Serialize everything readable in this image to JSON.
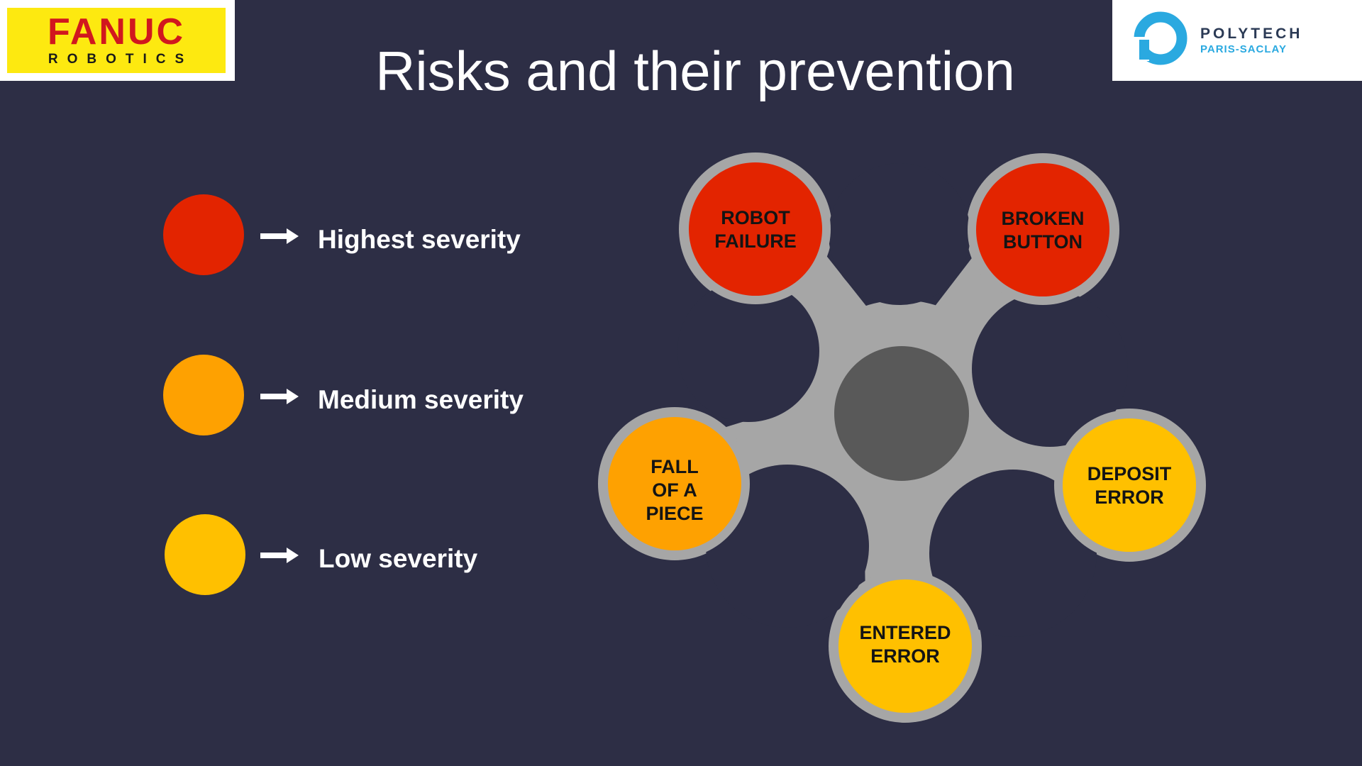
{
  "header": {
    "title": "Risks and their prevention",
    "left_logo": {
      "word": "FANUC",
      "sub": "ROBOTICS"
    },
    "right_logo": {
      "word": "POLYTECH",
      "sub": "PARIS-SACLAY"
    }
  },
  "legend": [
    {
      "label": "Highest severity",
      "color": "#e32400"
    },
    {
      "label": "Medium severity",
      "color": "#fea101"
    },
    {
      "label": "Low severity",
      "color": "#ffc000"
    }
  ],
  "diagram": {
    "hub_color": "#595959",
    "frame_color": "#a6a6a6",
    "nodes": [
      {
        "lines": [
          "ROBOT",
          "FAILURE"
        ],
        "severity": "Highest severity",
        "color": "#e32400"
      },
      {
        "lines": [
          "BROKEN",
          "BUTTON"
        ],
        "severity": "Highest severity",
        "color": "#e32400"
      },
      {
        "lines": [
          "FALL",
          "OF A",
          "PIECE"
        ],
        "severity": "Medium severity",
        "color": "#fea101"
      },
      {
        "lines": [
          "DEPOSIT",
          "ERROR"
        ],
        "severity": "Low severity",
        "color": "#ffc000"
      },
      {
        "lines": [
          "ENTERED",
          "ERROR"
        ],
        "severity": "Low severity",
        "color": "#ffc000"
      }
    ]
  }
}
